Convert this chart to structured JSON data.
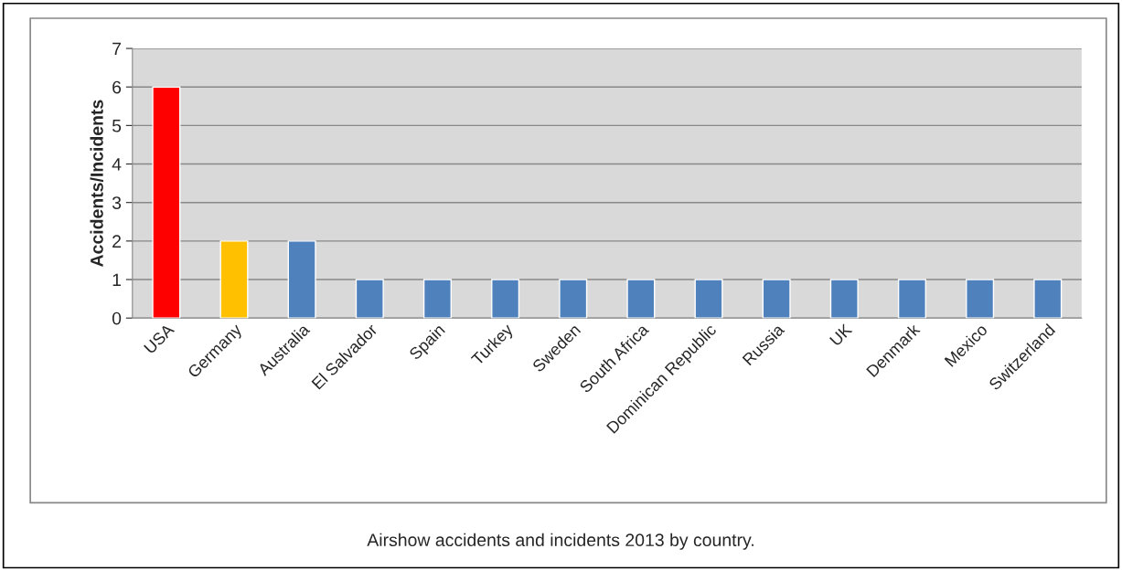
{
  "chart_data": {
    "type": "bar",
    "ylabel": "Accidents/Incidents",
    "categories": [
      "USA",
      "Germany",
      "Australia",
      "El Salvador",
      "Spain",
      "Turkey",
      "Sweden",
      "South Africa",
      "Dominican Republic",
      "Russia",
      "UK",
      "Denmark",
      "Mexico",
      "Switzerland"
    ],
    "values": [
      6,
      2,
      2,
      1,
      1,
      1,
      1,
      1,
      1,
      1,
      1,
      1,
      1,
      1
    ],
    "colors": [
      "#ff0000",
      "#ffc000",
      "#4f81bd",
      "#4f81bd",
      "#4f81bd",
      "#4f81bd",
      "#4f81bd",
      "#4f81bd",
      "#4f81bd",
      "#4f81bd",
      "#4f81bd",
      "#4f81bd",
      "#4f81bd",
      "#4f81bd"
    ],
    "ylim": [
      0,
      7
    ],
    "yticks": [
      0,
      1,
      2,
      3,
      4,
      5,
      6,
      7
    ],
    "grid": "y",
    "annotations": [
      "Airshow accidents and incidents 2013 by country."
    ]
  }
}
